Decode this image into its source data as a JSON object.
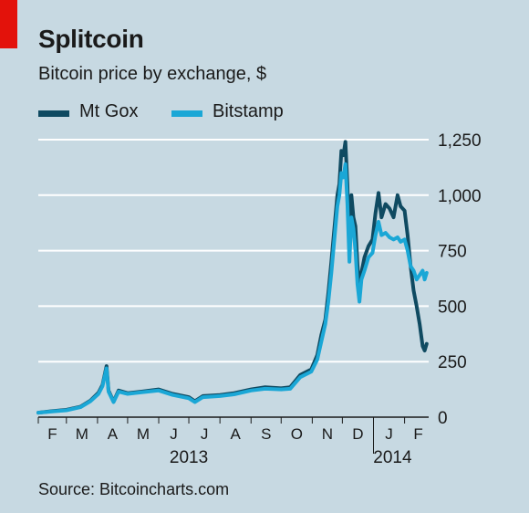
{
  "header": {
    "title": "Splitcoin",
    "subtitle": "Bitcoin price by exchange, $"
  },
  "legend": [
    {
      "label": "Mt Gox",
      "color": "#0f4a61"
    },
    {
      "label": "Bitstamp",
      "color": "#1aa7d6"
    }
  ],
  "footer": {
    "source": "Source: Bitcoincharts.com"
  },
  "colors": {
    "background": "#c7d9e2",
    "accent": "#e3120b",
    "grid": "#ffffff"
  },
  "chart_data": {
    "type": "line",
    "title": "Splitcoin",
    "subtitle": "Bitcoin price by exchange, $",
    "ylabel": "",
    "xlabel": "",
    "ylim": [
      0,
      1250
    ],
    "xlim": [
      "2013-02-01",
      "2014-02-25"
    ],
    "grid": true,
    "legend_position": "top-left",
    "y_ticks": [
      {
        "value": 0,
        "label": "0"
      },
      {
        "value": 250,
        "label": "250"
      },
      {
        "value": 500,
        "label": "500"
      },
      {
        "value": 750,
        "label": "750"
      },
      {
        "value": 1000,
        "label": "1,000"
      },
      {
        "value": 1250,
        "label": "1,250"
      }
    ],
    "x_month_ticks": [
      {
        "date": "2013-02-01",
        "label": "F"
      },
      {
        "date": "2013-03-01",
        "label": "M"
      },
      {
        "date": "2013-04-01",
        "label": "A"
      },
      {
        "date": "2013-05-01",
        "label": "M"
      },
      {
        "date": "2013-06-01",
        "label": "J"
      },
      {
        "date": "2013-07-01",
        "label": "J"
      },
      {
        "date": "2013-08-01",
        "label": "A"
      },
      {
        "date": "2013-09-01",
        "label": "S"
      },
      {
        "date": "2013-10-01",
        "label": "O"
      },
      {
        "date": "2013-11-01",
        "label": "N"
      },
      {
        "date": "2013-12-01",
        "label": "D"
      },
      {
        "date": "2014-01-01",
        "label": "J"
      },
      {
        "date": "2014-02-01",
        "label": "F"
      }
    ],
    "x_year_labels": [
      {
        "date": "2013-07-01",
        "label": "2013"
      },
      {
        "date": "2014-01-20",
        "label": "2014"
      }
    ],
    "series": [
      {
        "name": "Mt Gox",
        "color": "#0f4a61",
        "points": [
          [
            "2013-02-01",
            20
          ],
          [
            "2013-02-15",
            27
          ],
          [
            "2013-03-01",
            33
          ],
          [
            "2013-03-15",
            47
          ],
          [
            "2013-03-25",
            75
          ],
          [
            "2013-04-02",
            110
          ],
          [
            "2013-04-06",
            145
          ],
          [
            "2013-04-10",
            230
          ],
          [
            "2013-04-12",
            120
          ],
          [
            "2013-04-17",
            70
          ],
          [
            "2013-04-22",
            120
          ],
          [
            "2013-05-01",
            108
          ],
          [
            "2013-05-15",
            115
          ],
          [
            "2013-06-01",
            125
          ],
          [
            "2013-06-15",
            105
          ],
          [
            "2013-07-01",
            90
          ],
          [
            "2013-07-07",
            72
          ],
          [
            "2013-07-15",
            95
          ],
          [
            "2013-08-01",
            100
          ],
          [
            "2013-08-15",
            108
          ],
          [
            "2013-09-01",
            125
          ],
          [
            "2013-09-15",
            135
          ],
          [
            "2013-10-01",
            130
          ],
          [
            "2013-10-10",
            135
          ],
          [
            "2013-10-20",
            190
          ],
          [
            "2013-10-31",
            215
          ],
          [
            "2013-11-06",
            280
          ],
          [
            "2013-11-10",
            370
          ],
          [
            "2013-11-14",
            440
          ],
          [
            "2013-11-17",
            560
          ],
          [
            "2013-11-20",
            700
          ],
          [
            "2013-11-23",
            850
          ],
          [
            "2013-11-26",
            1000
          ],
          [
            "2013-11-28",
            1050
          ],
          [
            "2013-11-30",
            1200
          ],
          [
            "2013-12-02",
            1180
          ],
          [
            "2013-12-04",
            1240
          ],
          [
            "2013-12-06",
            1050
          ],
          [
            "2013-12-08",
            750
          ],
          [
            "2013-12-10",
            1000
          ],
          [
            "2013-12-12",
            900
          ],
          [
            "2013-12-14",
            860
          ],
          [
            "2013-12-16",
            690
          ],
          [
            "2013-12-18",
            560
          ],
          [
            "2013-12-20",
            650
          ],
          [
            "2013-12-23",
            720
          ],
          [
            "2013-12-27",
            770
          ],
          [
            "2013-12-31",
            800
          ],
          [
            "2014-01-03",
            920
          ],
          [
            "2014-01-06",
            1010
          ],
          [
            "2014-01-09",
            900
          ],
          [
            "2014-01-13",
            960
          ],
          [
            "2014-01-17",
            940
          ],
          [
            "2014-01-21",
            900
          ],
          [
            "2014-01-25",
            1000
          ],
          [
            "2014-01-28",
            950
          ],
          [
            "2014-02-01",
            930
          ],
          [
            "2014-02-04",
            820
          ],
          [
            "2014-02-07",
            680
          ],
          [
            "2014-02-10",
            570
          ],
          [
            "2014-02-13",
            500
          ],
          [
            "2014-02-16",
            420
          ],
          [
            "2014-02-19",
            320
          ],
          [
            "2014-02-21",
            300
          ],
          [
            "2014-02-23",
            330
          ]
        ]
      },
      {
        "name": "Bitstamp",
        "color": "#1aa7d6",
        "points": [
          [
            "2013-02-01",
            20
          ],
          [
            "2013-02-15",
            26
          ],
          [
            "2013-03-01",
            31
          ],
          [
            "2013-03-15",
            45
          ],
          [
            "2013-03-25",
            72
          ],
          [
            "2013-04-02",
            105
          ],
          [
            "2013-04-06",
            140
          ],
          [
            "2013-04-10",
            220
          ],
          [
            "2013-04-12",
            115
          ],
          [
            "2013-04-17",
            68
          ],
          [
            "2013-04-22",
            115
          ],
          [
            "2013-05-01",
            105
          ],
          [
            "2013-05-15",
            112
          ],
          [
            "2013-06-01",
            120
          ],
          [
            "2013-06-15",
            100
          ],
          [
            "2013-07-01",
            85
          ],
          [
            "2013-07-07",
            68
          ],
          [
            "2013-07-15",
            90
          ],
          [
            "2013-08-01",
            95
          ],
          [
            "2013-08-15",
            103
          ],
          [
            "2013-09-01",
            120
          ],
          [
            "2013-09-15",
            128
          ],
          [
            "2013-10-01",
            125
          ],
          [
            "2013-10-10",
            128
          ],
          [
            "2013-10-20",
            180
          ],
          [
            "2013-10-31",
            205
          ],
          [
            "2013-11-06",
            260
          ],
          [
            "2013-11-10",
            340
          ],
          [
            "2013-11-14",
            420
          ],
          [
            "2013-11-17",
            520
          ],
          [
            "2013-11-20",
            650
          ],
          [
            "2013-11-23",
            800
          ],
          [
            "2013-11-26",
            950
          ],
          [
            "2013-11-28",
            1000
          ],
          [
            "2013-11-30",
            1100
          ],
          [
            "2013-12-02",
            1080
          ],
          [
            "2013-12-04",
            1140
          ],
          [
            "2013-12-06",
            960
          ],
          [
            "2013-12-08",
            700
          ],
          [
            "2013-12-10",
            900
          ],
          [
            "2013-12-12",
            850
          ],
          [
            "2013-12-14",
            750
          ],
          [
            "2013-12-16",
            600
          ],
          [
            "2013-12-18",
            520
          ],
          [
            "2013-12-20",
            620
          ],
          [
            "2013-12-23",
            660
          ],
          [
            "2013-12-27",
            720
          ],
          [
            "2013-12-31",
            740
          ],
          [
            "2014-01-03",
            820
          ],
          [
            "2014-01-06",
            880
          ],
          [
            "2014-01-09",
            820
          ],
          [
            "2014-01-13",
            830
          ],
          [
            "2014-01-17",
            810
          ],
          [
            "2014-01-21",
            800
          ],
          [
            "2014-01-25",
            810
          ],
          [
            "2014-01-28",
            790
          ],
          [
            "2014-02-01",
            800
          ],
          [
            "2014-02-04",
            750
          ],
          [
            "2014-02-07",
            680
          ],
          [
            "2014-02-10",
            660
          ],
          [
            "2014-02-13",
            620
          ],
          [
            "2014-02-16",
            640
          ],
          [
            "2014-02-19",
            660
          ],
          [
            "2014-02-21",
            620
          ],
          [
            "2014-02-23",
            650
          ]
        ]
      }
    ]
  }
}
